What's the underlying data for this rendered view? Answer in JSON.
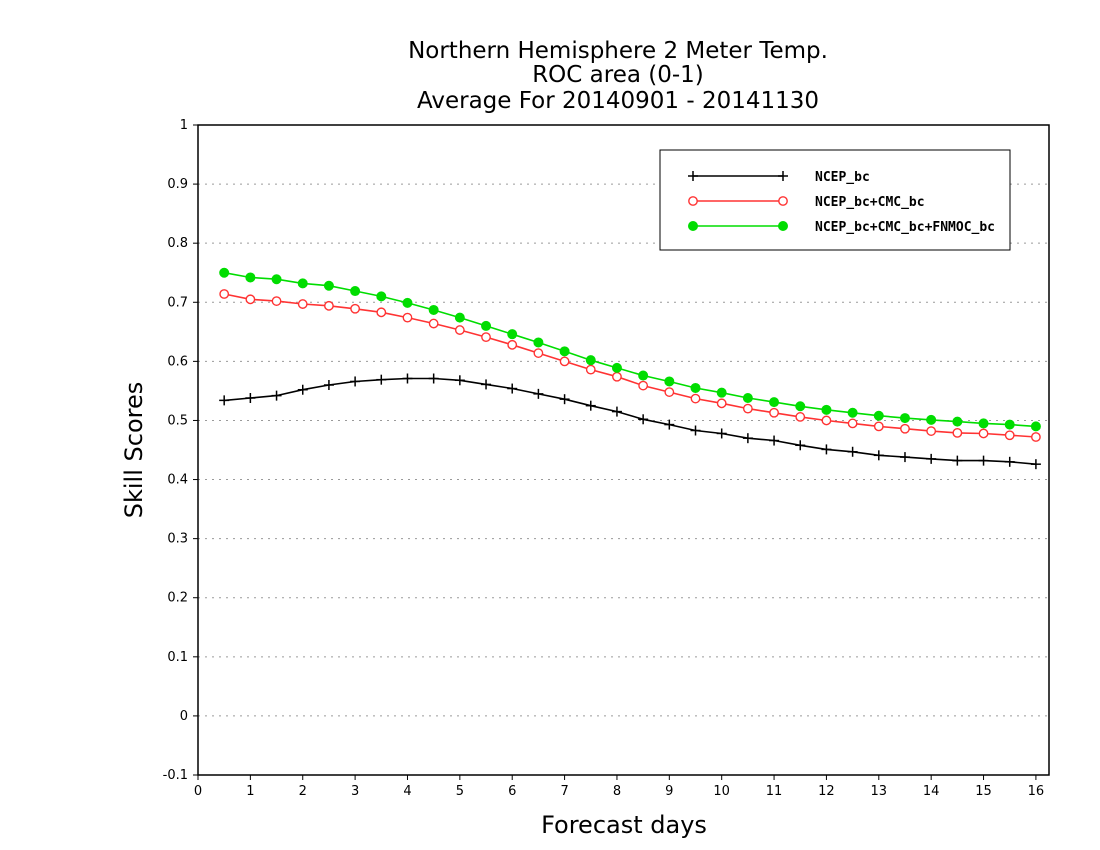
{
  "chart_data": {
    "type": "line",
    "title": [
      "Northern Hemisphere 2 Meter Temp.",
      "ROC area (0-1)",
      "Average For 20140901 - 20141130"
    ],
    "xlabel": "Forecast days",
    "ylabel": "Skill Scores",
    "xlim": [
      0,
      16.25
    ],
    "ylim": [
      -0.1,
      1
    ],
    "x_ticks": [
      "0",
      "1",
      "2",
      "3",
      "4",
      "5",
      "6",
      "7",
      "8",
      "9",
      "10",
      "11",
      "12",
      "13",
      "14",
      "15",
      "16"
    ],
    "y_ticks": [
      "-0.1",
      "0",
      "0.1",
      "0.2",
      "0.3",
      "0.4",
      "0.5",
      "0.6",
      "0.7",
      "0.8",
      "0.9",
      "1"
    ],
    "grid": "horizontal dotted",
    "legend_position": "top-right",
    "x": [
      0.5,
      1,
      1.5,
      2,
      2.5,
      3,
      3.5,
      4,
      4.5,
      5,
      5.5,
      6,
      6.5,
      7,
      7.5,
      8,
      8.5,
      9,
      9.5,
      10,
      10.5,
      11,
      11.5,
      12,
      12.5,
      13,
      13.5,
      14,
      14.5,
      15,
      15.5,
      16
    ],
    "series": [
      {
        "name": "NCEP_bc",
        "color": "#000000",
        "marker": "plus",
        "values": [
          0.534,
          0.538,
          0.542,
          0.552,
          0.56,
          0.566,
          0.569,
          0.571,
          0.571,
          0.568,
          0.561,
          0.554,
          0.545,
          0.536,
          0.525,
          0.515,
          0.502,
          0.493,
          0.483,
          0.478,
          0.47,
          0.466,
          0.458,
          0.451,
          0.447,
          0.441,
          0.438,
          0.435,
          0.432,
          0.432,
          0.43,
          0.426
        ]
      },
      {
        "name": "NCEP_bc+CMC_bc",
        "color": "#ff3333",
        "marker": "open-circle",
        "values": [
          0.714,
          0.705,
          0.702,
          0.697,
          0.694,
          0.689,
          0.683,
          0.674,
          0.664,
          0.653,
          0.641,
          0.628,
          0.614,
          0.6,
          0.586,
          0.574,
          0.559,
          0.548,
          0.537,
          0.529,
          0.52,
          0.513,
          0.506,
          0.5,
          0.495,
          0.49,
          0.486,
          0.482,
          0.479,
          0.478,
          0.475,
          0.472
        ]
      },
      {
        "name": "NCEP_bc+CMC_bc+FNMOC_bc",
        "color": "#00dd00",
        "marker": "filled-circle",
        "values": [
          0.75,
          0.742,
          0.739,
          0.732,
          0.728,
          0.719,
          0.71,
          0.699,
          0.687,
          0.674,
          0.66,
          0.646,
          0.632,
          0.617,
          0.602,
          0.589,
          0.576,
          0.566,
          0.555,
          0.547,
          0.538,
          0.531,
          0.524,
          0.518,
          0.513,
          0.508,
          0.504,
          0.501,
          0.498,
          0.495,
          0.493,
          0.49
        ]
      }
    ]
  }
}
